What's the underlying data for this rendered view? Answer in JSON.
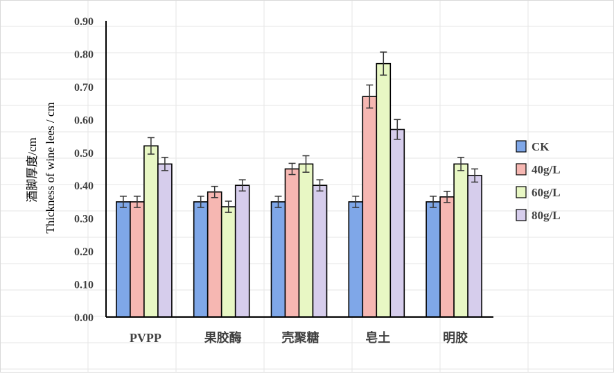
{
  "chart_data": {
    "type": "bar",
    "ylabel_cn": "酒脚厚度/cm",
    "ylabel_en": "Thickness of wine lees / cm",
    "ylim": [
      0,
      0.9
    ],
    "yticks": [
      "0.00",
      "0.10",
      "0.20",
      "0.30",
      "0.40",
      "0.50",
      "0.60",
      "0.70",
      "0.80",
      "0.90"
    ],
    "categories": [
      "PVPP",
      "果胶酶",
      "壳聚糖",
      "皂土",
      "明胶"
    ],
    "series": [
      {
        "name": "CK",
        "color": "#7fa7e8",
        "values": [
          0.35,
          0.35,
          0.35,
          0.35,
          0.35
        ],
        "errors": [
          0.017,
          0.017,
          0.017,
          0.017,
          0.017
        ]
      },
      {
        "name": "40g/L",
        "color": "#f6b7b2",
        "values": [
          0.35,
          0.38,
          0.45,
          0.67,
          0.365
        ],
        "errors": [
          0.017,
          0.017,
          0.017,
          0.035,
          0.017
        ]
      },
      {
        "name": "60g/L",
        "color": "#e8f7c4",
        "values": [
          0.52,
          0.335,
          0.465,
          0.77,
          0.465
        ],
        "errors": [
          0.025,
          0.017,
          0.025,
          0.035,
          0.02
        ]
      },
      {
        "name": "80g/L",
        "color": "#d6cdec",
        "values": [
          0.465,
          0.4,
          0.4,
          0.57,
          0.43
        ],
        "errors": [
          0.02,
          0.017,
          0.017,
          0.03,
          0.02
        ]
      }
    ],
    "grid": true,
    "legend_position": "right"
  }
}
